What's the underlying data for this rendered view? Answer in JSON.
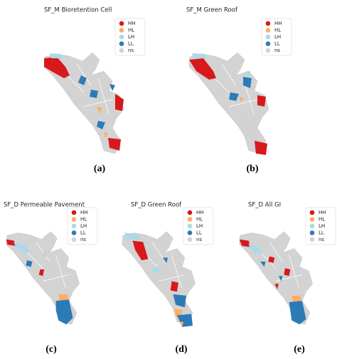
{
  "colors": [
    "#d7191c",
    "#fdae61",
    "#abd9e9",
    "#2c7bb6",
    "#d3d3d3"
  ],
  "panels": [
    {
      "title": "SF_M Bioretention Cell",
      "label": "(a)",
      "legend": [
        "HH",
        "HL",
        "LH",
        "LL",
        "ns"
      ]
    },
    {
      "title": "SF_M Green Roof",
      "label": "(b)",
      "legend": [
        "HH",
        "HL",
        "LH",
        "LL",
        "ns"
      ]
    },
    {
      "title": "SF_D Permeable Pavement",
      "label": "(c)",
      "legend": [
        "HH",
        "HL",
        "LH",
        "LL",
        "ns"
      ]
    },
    {
      "title": "SF_D Green Roof",
      "label": "(d)",
      "legend": [
        "HH",
        "HL",
        "LH",
        "LL",
        "ns"
      ]
    },
    {
      "title": "SF_D All GI",
      "label": "(e)",
      "legend": [
        "HH",
        "HL",
        "LH",
        "LL",
        "ns"
      ]
    }
  ]
}
